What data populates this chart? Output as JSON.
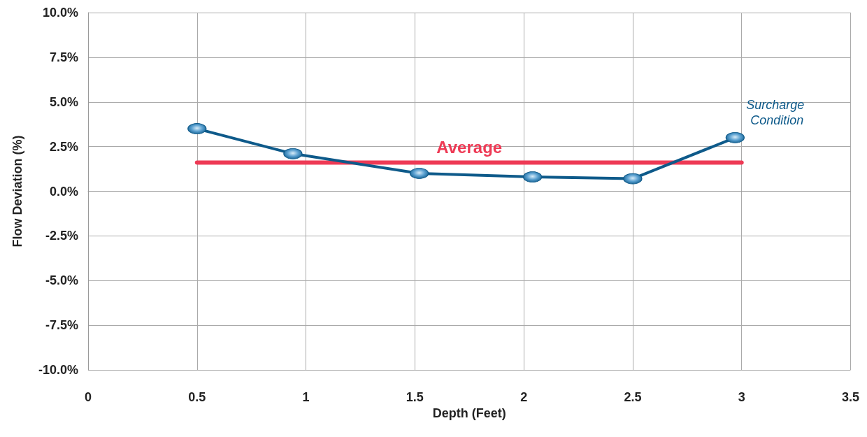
{
  "chart_data": {
    "type": "line",
    "xlabel": "Depth (Feet)",
    "ylabel": "Flow Deviation (%)",
    "series": [
      {
        "color": "#0e5a8a",
        "x": [
          0.5,
          0.94,
          1.52,
          2.04,
          2.5,
          2.97
        ],
        "values": [
          3.5,
          2.1,
          1.0,
          0.8,
          0.7,
          3.0
        ],
        "marker": "circle"
      },
      {
        "name": "Average",
        "color": "#ee3a55",
        "x": [
          0.5,
          3.0
        ],
        "values": [
          1.6,
          1.6
        ],
        "marker": "none"
      }
    ],
    "xlim": [
      0,
      3.5
    ],
    "xticks": [
      0,
      0.5,
      1,
      1.5,
      2,
      2.5,
      3,
      3.5
    ],
    "ylim": [
      -10,
      10
    ],
    "yticks": [
      {
        "value": -10,
        "label": "-10.0%"
      },
      {
        "value": -7.5,
        "label": "-7.5%"
      },
      {
        "value": -5,
        "label": "-5.0%"
      },
      {
        "value": -2.5,
        "label": "-2.5%"
      },
      {
        "value": 0,
        "label": "0.0%"
      },
      {
        "value": 2.5,
        "label": "2.5%"
      },
      {
        "value": 5,
        "label": "5.0%"
      },
      {
        "value": 7.5,
        "label": "7.5%"
      },
      {
        "value": 10,
        "label": "10.0%"
      }
    ],
    "annotations": [
      {
        "text": "Surcharge Condition",
        "x": 2.97,
        "y": 3.0
      }
    ],
    "grid": true,
    "legend": false
  }
}
